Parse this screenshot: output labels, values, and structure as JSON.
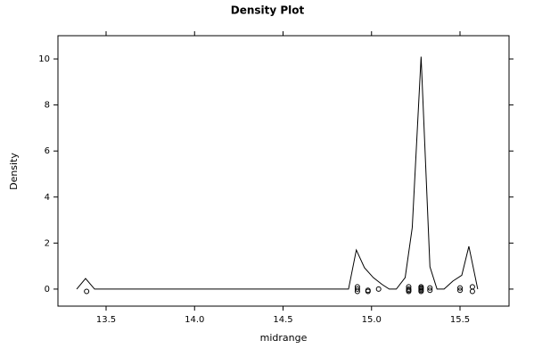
{
  "chart_data": {
    "type": "density",
    "title": "Density Plot",
    "x_label": "midrange",
    "y_label": "Density",
    "xlim": [
      13.228,
      15.777
    ],
    "ylim": [
      -0.74,
      11.01
    ],
    "xticks": [
      13.5,
      {
        "value": 14,
        "label": "14.0"
      },
      14.5,
      {
        "value": 15,
        "label": "15.0"
      },
      15.5
    ],
    "yticks": [
      0,
      2,
      4,
      6,
      8,
      10
    ],
    "color": "#000000",
    "series": [
      {
        "name": "density",
        "x": [
          13.334,
          13.384,
          13.435,
          14.87,
          14.914,
          14.96,
          15.01,
          15.06,
          15.1,
          15.14,
          15.19,
          15.23,
          15.28,
          15.33,
          15.37,
          15.41,
          15.46,
          15.51,
          15.55,
          15.6
        ],
        "values": [
          0,
          0.46,
          0,
          0,
          1.7,
          0.93,
          0.5,
          0.2,
          0,
          0,
          0.5,
          2.67,
          10.1,
          0.97,
          0,
          0,
          0.35,
          0.6,
          1.86,
          0
        ]
      },
      {
        "name": "points",
        "x": [
          13.39,
          14.92,
          14.92,
          14.92,
          14.98,
          14.98,
          15.04,
          15.21,
          15.21,
          15.21,
          15.21,
          15.28,
          15.28,
          15.28,
          15.28,
          15.28,
          15.33,
          15.33,
          15.5,
          15.5,
          15.57,
          15.57
        ],
        "values": [
          -0.1,
          0.1,
          0,
          -0.1,
          -0.05,
          -0.1,
          0,
          0.1,
          0,
          -0.05,
          -0.1,
          0.1,
          0.05,
          0,
          -0.05,
          -0.1,
          0.05,
          -0.05,
          0.05,
          -0.05,
          0.1,
          -0.1
        ]
      }
    ]
  }
}
